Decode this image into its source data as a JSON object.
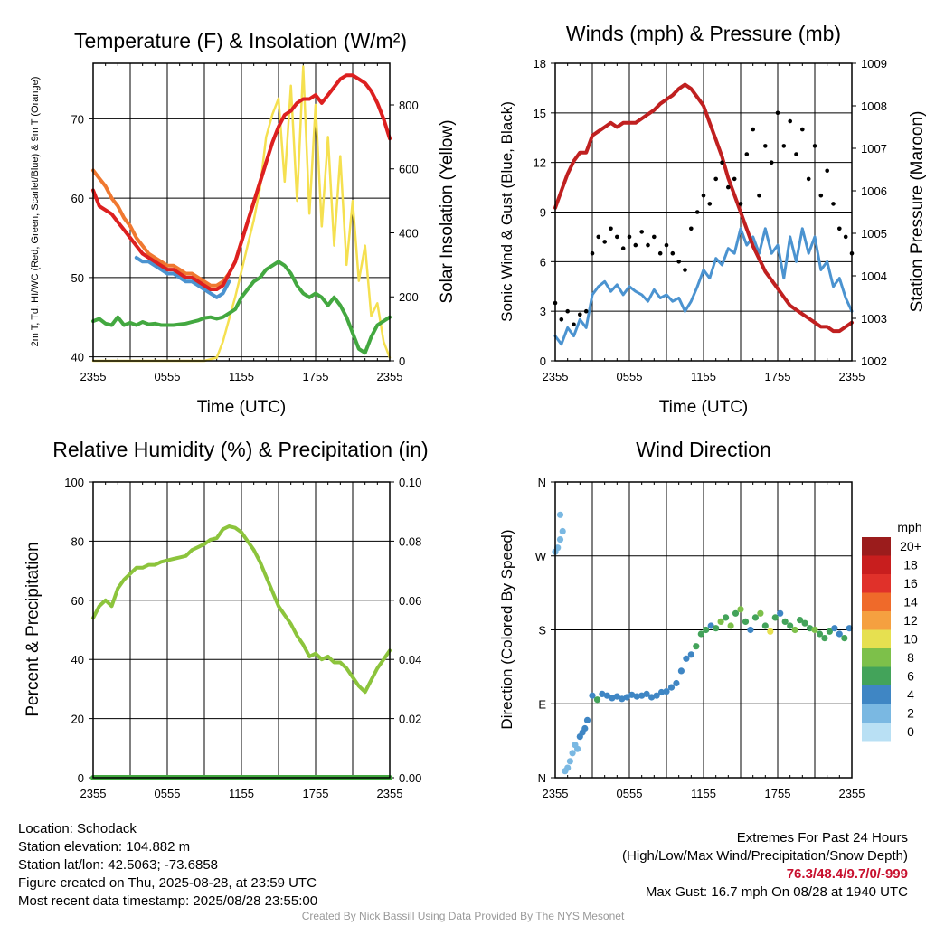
{
  "chart_data": [
    {
      "type": "line",
      "title": "Temperature (F) & Insolation (W/m²)",
      "xlabel": "Time (UTC)",
      "ylabel_left": "2m T, Td, HI/WC (Red, Green, Scarlet/Blue) & 9m T (Orange)",
      "ylabel_right": "Solar Insolation (Yellow)",
      "x_ticks": [
        "2355",
        "0555",
        "1155",
        "1755",
        "2355"
      ],
      "x_range_hours": [
        0,
        24
      ],
      "ylim_left": [
        39.5,
        77
      ],
      "ylim_right": [
        0,
        930
      ],
      "y_ticks_left": [
        40,
        50,
        60,
        70
      ],
      "y_ticks_right": [
        0,
        200,
        400,
        600,
        800
      ],
      "series": [
        {
          "color": "#dd2020",
          "x": [
            0,
            0.5,
            1,
            1.5,
            2,
            2.5,
            3,
            3.5,
            4,
            4.5,
            5,
            5.5,
            6,
            6.5,
            7,
            7.5,
            8,
            8.5,
            9,
            9.5,
            10,
            10.5,
            11,
            11.5,
            12,
            12.5,
            13,
            13.5,
            14,
            14.5,
            15,
            15.5,
            16,
            16.5,
            17,
            17.5,
            18,
            18.5,
            19,
            19.5,
            20,
            20.5,
            21,
            21.5,
            22,
            22.5,
            23,
            23.5,
            24
          ],
          "y": [
            61,
            59,
            58.5,
            58,
            57,
            56,
            55,
            54,
            53,
            52.5,
            52,
            51.5,
            51,
            51,
            50.5,
            50,
            50,
            49.5,
            49,
            48.5,
            48.5,
            49,
            50.5,
            52,
            54.5,
            57,
            59.5,
            62,
            64.5,
            67,
            69,
            70.5,
            71,
            72,
            72.5,
            72.5,
            73,
            72,
            73,
            74,
            75,
            75.5,
            75.5,
            75,
            74.5,
            73.5,
            72,
            70,
            67.5
          ]
        },
        {
          "color": "#f07830",
          "x": [
            0,
            0.5,
            1,
            1.5,
            2,
            2.5,
            3,
            3.5,
            4,
            4.5,
            5,
            5.5,
            6,
            6.5,
            7,
            7.5,
            8,
            8.5,
            9,
            9.5,
            10,
            10.5,
            11,
            11.5,
            12,
            12.5,
            13,
            13.5,
            14
          ],
          "y": [
            63.5,
            62.5,
            61.5,
            60,
            59,
            57.5,
            56.5,
            55,
            54,
            53,
            52.5,
            52,
            51.5,
            51.5,
            51,
            50.5,
            50.5,
            50,
            49.5,
            49,
            49,
            49.5,
            50.5,
            52,
            54.5,
            57,
            59.5,
            62,
            64.5
          ]
        },
        {
          "color": "#4b93d0",
          "x": [
            3.5,
            4,
            4.5,
            5,
            5.5,
            6,
            6.5,
            7,
            7.5,
            8,
            8.5,
            9,
            9.5,
            10,
            10.5,
            11
          ],
          "y": [
            52.5,
            52,
            52,
            51.5,
            51,
            50.5,
            50.5,
            50,
            49.5,
            49.5,
            49,
            48.5,
            48,
            47.5,
            48,
            49.5
          ]
        },
        {
          "color": "#43a840",
          "x": [
            0,
            0.5,
            1,
            1.5,
            2,
            2.5,
            3,
            3.5,
            4,
            4.5,
            5,
            5.5,
            6,
            6.5,
            7,
            7.5,
            8,
            8.5,
            9,
            9.5,
            10,
            10.5,
            11,
            11.5,
            12,
            12.5,
            13,
            13.5,
            14,
            14.5,
            15,
            15.5,
            16,
            16.5,
            17,
            17.5,
            18,
            18.5,
            19,
            19.5,
            20,
            20.5,
            21,
            21.5,
            22,
            22.5,
            23,
            23.5,
            24
          ],
          "y": [
            44.5,
            44.8,
            44.2,
            44,
            45,
            44,
            44.3,
            44,
            44.4,
            44.1,
            44.2,
            44,
            44,
            44,
            44.1,
            44.2,
            44.4,
            44.6,
            44.9,
            45,
            44.8,
            45,
            45.5,
            46,
            47.5,
            48.5,
            49.5,
            50,
            51,
            51.5,
            52,
            51.5,
            50.5,
            49,
            48,
            47.5,
            48,
            47.5,
            46.5,
            47.5,
            46.5,
            45,
            43,
            41,
            40.5,
            42.5,
            44,
            44.5,
            45
          ]
        },
        {
          "color": "#f5e050",
          "x": [
            0,
            9,
            10,
            10.5,
            11,
            11.5,
            12,
            12.5,
            13,
            13.5,
            14,
            14.5,
            15,
            15.5,
            16,
            16.5,
            17,
            17.5,
            18,
            18.5,
            19,
            19.5,
            20,
            20.5,
            21,
            21.5,
            22,
            22.5,
            23,
            23.5,
            24
          ],
          "y": [
            0,
            0,
            10,
            60,
            130,
            200,
            280,
            360,
            440,
            540,
            700,
            770,
            820,
            560,
            860,
            500,
            920,
            460,
            800,
            420,
            700,
            360,
            640,
            300,
            500,
            250,
            360,
            140,
            180,
            60,
            10
          ]
        }
      ]
    },
    {
      "type": "line",
      "title": "Winds (mph) & Pressure (mb)",
      "xlabel": "Time (UTC)",
      "ylabel_left": "Sonic Wind & Gust (Blue, Black)",
      "ylabel_right": "Station Pressure (Maroon)",
      "x_ticks": [
        "2355",
        "0555",
        "1155",
        "1755",
        "2355"
      ],
      "x_range_hours": [
        0,
        24
      ],
      "ylim_left": [
        0,
        18
      ],
      "ylim_right": [
        1002,
        1009
      ],
      "y_ticks_left": [
        0,
        3,
        6,
        9,
        12,
        15,
        18
      ],
      "y_ticks_right": [
        1002,
        1003,
        1004,
        1005,
        1006,
        1007,
        1008,
        1009
      ],
      "series": [
        {
          "color": "#4b93d0",
          "x": [
            0,
            0.5,
            1,
            1.5,
            2,
            2.5,
            3,
            3.5,
            4,
            4.5,
            5,
            5.5,
            6,
            6.5,
            7,
            7.5,
            8,
            8.5,
            9,
            9.5,
            10,
            10.5,
            11,
            11.5,
            12,
            12.5,
            13,
            13.5,
            14,
            14.5,
            15,
            15.5,
            16,
            16.5,
            17,
            17.5,
            18,
            18.5,
            19,
            19.5,
            20,
            20.5,
            21,
            21.5,
            22,
            22.5,
            23,
            23.5,
            24
          ],
          "y": [
            1.5,
            1,
            2,
            1.5,
            2.5,
            2,
            4,
            4.5,
            4.8,
            4.2,
            4.6,
            4,
            4.5,
            4.2,
            4,
            3.6,
            4.3,
            3.8,
            4,
            3.6,
            3.8,
            3,
            3.6,
            4.5,
            5.5,
            5,
            6.2,
            5.8,
            6.8,
            6.5,
            8,
            7,
            7.5,
            6.5,
            8,
            6.5,
            7,
            5,
            7.5,
            6,
            8,
            6.5,
            7.5,
            5.5,
            6,
            4.5,
            5,
            3.8,
            3
          ]
        },
        {
          "color": "#c02020",
          "x": [
            0,
            0.5,
            1,
            1.5,
            2,
            2.5,
            3,
            3.5,
            4,
            4.5,
            5,
            5.5,
            6,
            6.5,
            7,
            7.5,
            8,
            8.5,
            9,
            9.5,
            10,
            10.5,
            11,
            11.5,
            12,
            12.5,
            13,
            13.5,
            14,
            14.5,
            15,
            15.5,
            16,
            16.5,
            17,
            17.5,
            18,
            18.5,
            19,
            19.5,
            20,
            20.5,
            21,
            21.5,
            22,
            22.5,
            23,
            23.5,
            24
          ],
          "y": [
            1005.6,
            1006,
            1006.4,
            1006.7,
            1006.9,
            1006.9,
            1007.3,
            1007.4,
            1007.5,
            1007.6,
            1007.5,
            1007.6,
            1007.6,
            1007.6,
            1007.7,
            1007.8,
            1007.9,
            1008.05,
            1008.15,
            1008.25,
            1008.4,
            1008.5,
            1008.4,
            1008.2,
            1008,
            1007.6,
            1007.2,
            1006.8,
            1006.3,
            1005.9,
            1005.5,
            1005.1,
            1004.7,
            1004.4,
            1004.1,
            1003.9,
            1003.7,
            1003.5,
            1003.3,
            1003.2,
            1003.1,
            1003,
            1002.9,
            1002.8,
            1002.8,
            1002.7,
            1002.7,
            1002.8,
            1002.9
          ]
        },
        {
          "name_hidden": "gust",
          "color": "#000000",
          "x": [
            0,
            0.5,
            1,
            1.5,
            2,
            2.5,
            3,
            3.5,
            4,
            4.5,
            5,
            5.5,
            6,
            6.5,
            7,
            7.5,
            8,
            8.5,
            9,
            9.5,
            10,
            10.5,
            11,
            11.5,
            12,
            12.5,
            13,
            13.5,
            14,
            14.5,
            15,
            15.5,
            16,
            16.5,
            17,
            17.5,
            18,
            18.5,
            19,
            19.5,
            20,
            20.5,
            21,
            21.5,
            22,
            22.5,
            23,
            23.5,
            24
          ],
          "y": [
            3.5,
            2.5,
            3,
            2.2,
            2.8,
            3,
            6.5,
            7.5,
            7.2,
            8,
            7.5,
            6.8,
            7.5,
            7,
            7.8,
            7,
            7.5,
            6.5,
            7,
            6.5,
            6,
            5.5,
            8,
            9,
            10,
            9.5,
            11,
            12,
            10.5,
            11,
            9.5,
            12.5,
            14,
            10,
            13,
            12,
            15,
            13,
            14.5,
            12.5,
            14,
            11,
            13,
            10,
            11.5,
            9.5,
            8,
            7.5,
            6.5
          ]
        }
      ]
    },
    {
      "type": "line",
      "title": "Relative Humidity (%) & Precipitation (in)",
      "xlabel": "",
      "ylabel_left": "Percent & Precipitation",
      "x_ticks": [
        "2355",
        "0555",
        "1155",
        "1755",
        "2355"
      ],
      "x_range_hours": [
        0,
        24
      ],
      "ylim_left": [
        0,
        100
      ],
      "ylim_right": [
        0,
        0.1
      ],
      "y_ticks_left": [
        0,
        20,
        40,
        60,
        80,
        100
      ],
      "y_ticks_right": [
        "0.00",
        "0.02",
        "0.04",
        "0.06",
        "0.08",
        "0.10"
      ],
      "series": [
        {
          "color": "#8cc43c",
          "x": [
            0,
            0.5,
            1,
            1.5,
            2,
            2.5,
            3,
            3.5,
            4,
            4.5,
            5,
            5.5,
            6,
            6.5,
            7,
            7.5,
            8,
            8.5,
            9,
            9.5,
            10,
            10.5,
            11,
            11.5,
            12,
            12.5,
            13,
            13.5,
            14,
            14.5,
            15,
            15.5,
            16,
            16.5,
            17,
            17.5,
            18,
            18.5,
            19,
            19.5,
            20,
            20.5,
            21,
            21.5,
            22,
            22.5,
            23,
            23.5,
            24
          ],
          "y": [
            54,
            58,
            60,
            58,
            64,
            67,
            69,
            71,
            71,
            72,
            72,
            73,
            73.5,
            74,
            74.5,
            75,
            77,
            78,
            79,
            80.5,
            81,
            84,
            85,
            84.5,
            83,
            80,
            77,
            73,
            68,
            63,
            58,
            55,
            52,
            48,
            45,
            41,
            42,
            40,
            41,
            39,
            39,
            37,
            34,
            31,
            29,
            33,
            37,
            40,
            43
          ]
        },
        {
          "color": "#43a840",
          "x": [
            0,
            24
          ],
          "y": [
            0,
            0
          ]
        }
      ]
    },
    {
      "type": "scatter",
      "title": "Wind Direction",
      "xlabel": "",
      "ylabel_left": "Direction (Colored By Speed)",
      "x_ticks": [
        "2355",
        "0555",
        "1155",
        "1755",
        "2355"
      ],
      "x_range_hours": [
        0,
        24
      ],
      "y_range_deg": [
        0,
        360
      ],
      "y_ticks": [
        "N",
        "E",
        "S",
        "W",
        "N"
      ],
      "legend": {
        "title": "mph",
        "labels": [
          "20+",
          "18",
          "16",
          "14",
          "12",
          "10",
          "8",
          "6",
          "4",
          "2",
          "0"
        ],
        "colors": [
          "#9b1c1c",
          "#c81e1e",
          "#e0312a",
          "#ef6a2a",
          "#f5a040",
          "#e6e050",
          "#7dc04a",
          "#43a35a",
          "#3f86c4",
          "#7ab8e2",
          "#b9e0f4"
        ],
        "placement": "right"
      },
      "points_x": [
        0,
        0.2,
        0.4,
        0.6,
        0.4,
        0.8,
        1.0,
        1.2,
        1.4,
        1.6,
        1.8,
        2.0,
        2.2,
        2.4,
        2.6,
        3.0,
        3.4,
        3.8,
        4.2,
        4.6,
        5.0,
        5.4,
        5.8,
        6.2,
        6.6,
        7.0,
        7.4,
        7.8,
        8.2,
        8.6,
        9.0,
        9.4,
        9.8,
        10.2,
        10.6,
        11.0,
        11.4,
        11.8,
        12.2,
        12.6,
        13.0,
        13.4,
        13.8,
        14.2,
        14.6,
        15.0,
        15.4,
        15.8,
        16.2,
        16.6,
        17.0,
        17.4,
        17.8,
        18.2,
        18.6,
        19.0,
        19.4,
        19.8,
        20.2,
        20.6,
        21.0,
        21.4,
        21.8,
        22.2,
        22.6,
        23.0,
        23.4,
        23.8
      ],
      "points_y": [
        275,
        280,
        290,
        300,
        320,
        8,
        12,
        20,
        30,
        40,
        35,
        50,
        55,
        60,
        70,
        100,
        95,
        102,
        100,
        97,
        99,
        96,
        98,
        101,
        99,
        100,
        102,
        98,
        100,
        104,
        105,
        110,
        115,
        130,
        145,
        150,
        160,
        175,
        180,
        185,
        182,
        190,
        195,
        185,
        200,
        205,
        190,
        180,
        195,
        200,
        185,
        178,
        195,
        200,
        190,
        185,
        180,
        192,
        188,
        182,
        180,
        175,
        170,
        178,
        182,
        175,
        170,
        182
      ],
      "points_speed": [
        2,
        2,
        2,
        1,
        1,
        1,
        1,
        2,
        2,
        1,
        2,
        3,
        3,
        4,
        4,
        4,
        6,
        4,
        4,
        4,
        4,
        4,
        4,
        4,
        4,
        4,
        4,
        4,
        4,
        4,
        4,
        4,
        4,
        4,
        4,
        4,
        5,
        6,
        6,
        4,
        6,
        7,
        6,
        8,
        6,
        7,
        6,
        4,
        6,
        8,
        6,
        9,
        6,
        4,
        6,
        6,
        8,
        6,
        6,
        6,
        7,
        6,
        6,
        6,
        4,
        4,
        6,
        4
      ]
    }
  ],
  "info_left": [
    "Location: Schodack",
    "Station elevation: 104.882 m",
    "Station lat/lon: 42.5063; -73.6858",
    "Figure created on Thu, 2025-08-28, at 23:59 UTC",
    "Most recent data timestamp: 2025/08/28 23:55:00"
  ],
  "info_right": {
    "title": "Extremes For Past 24 Hours",
    "subtitle": "(High/Low/Max Wind/Precipitation/Snow Depth)",
    "values": "76.3/48.4/9.7/0/-999",
    "max_gust": "Max Gust: 16.7 mph On 08/28 at 1940 UTC"
  },
  "credit": "Created By Nick Bassill Using Data Provided By The NYS Mesonet"
}
